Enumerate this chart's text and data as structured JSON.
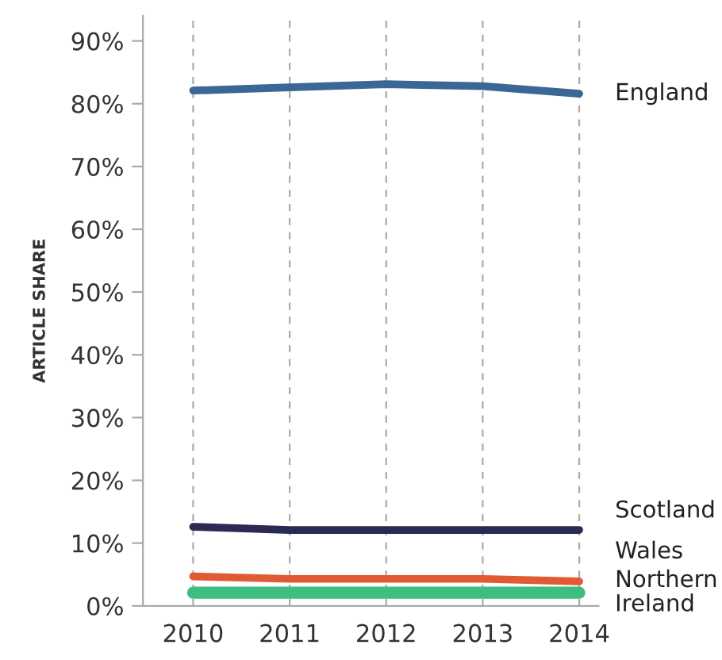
{
  "chart_data": {
    "type": "line",
    "ylabel": "ARTICLE SHARE",
    "categories": [
      "2010",
      "2011",
      "2012",
      "2013",
      "2014"
    ],
    "series": [
      {
        "name": "England",
        "color": "#3a6795",
        "values": [
          82.1,
          82.6,
          83.1,
          82.8,
          81.6
        ]
      },
      {
        "name": "Scotland",
        "color": "#2a2a55",
        "values": [
          12.6,
          12.1,
          12.1,
          12.1,
          12.1
        ]
      },
      {
        "name": "Wales",
        "color": "#e05a33",
        "values": [
          4.7,
          4.3,
          4.3,
          4.3,
          3.9
        ]
      },
      {
        "name": "Northern\nIreland",
        "color": "#3dbd80",
        "values": [
          2.1,
          2.1,
          2.1,
          2.1,
          2.1
        ]
      }
    ],
    "ylim": [
      0,
      94
    ],
    "yticks": [
      {
        "value": 0,
        "label": "0%"
      },
      {
        "value": 10,
        "label": "10%"
      },
      {
        "value": 20,
        "label": "20%"
      },
      {
        "value": 30,
        "label": "30%"
      },
      {
        "value": 40,
        "label": "40%"
      },
      {
        "value": 50,
        "label": "50%"
      },
      {
        "value": 60,
        "label": "60%"
      },
      {
        "value": 70,
        "label": "70%"
      },
      {
        "value": 80,
        "label": "80%"
      },
      {
        "value": 90,
        "label": "90%"
      }
    ],
    "grid": "x",
    "legend": false,
    "marker": "none",
    "line_style": "solid"
  }
}
